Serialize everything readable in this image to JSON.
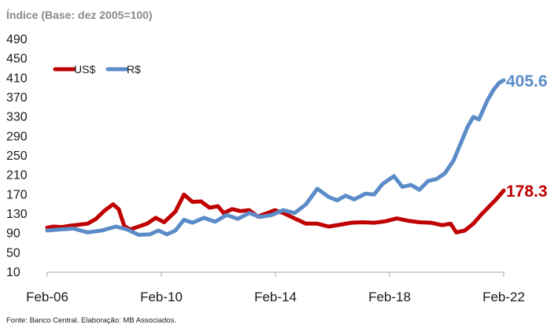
{
  "chart_data": {
    "type": "line",
    "subtitle": "Índice (Base: dez 2005=100)",
    "ylim": [
      10,
      490
    ],
    "yticks": [
      10,
      50,
      90,
      130,
      170,
      210,
      250,
      290,
      330,
      370,
      410,
      450,
      490
    ],
    "xticks": [
      "Feb-06",
      "Feb-10",
      "Feb-14",
      "Feb-18",
      "Feb-22"
    ],
    "xlim": [
      2006.08,
      2022.17
    ],
    "legend_position": "top-left",
    "grid": false,
    "series": [
      {
        "name": "US$",
        "color": "#c00000",
        "end_label": "178.3",
        "x": [
          2006.08,
          2006.3,
          2006.6,
          2006.9,
          2007.2,
          2007.5,
          2007.8,
          2008.1,
          2008.4,
          2008.6,
          2008.8,
          2009.0,
          2009.3,
          2009.6,
          2009.9,
          2010.2,
          2010.6,
          2010.9,
          2011.2,
          2011.5,
          2011.8,
          2012.1,
          2012.3,
          2012.6,
          2012.9,
          2013.2,
          2013.5,
          2013.8,
          2014.1,
          2014.4,
          2014.8,
          2015.2,
          2015.6,
          2016.0,
          2016.4,
          2016.8,
          2017.2,
          2017.6,
          2018.0,
          2018.4,
          2018.8,
          2019.2,
          2019.6,
          2020.0,
          2020.3,
          2020.5,
          2020.8,
          2021.1,
          2021.4,
          2021.7,
          2021.9,
          2022.17
        ],
        "values": [
          102,
          104,
          103,
          106,
          108,
          110,
          120,
          137,
          150,
          140,
          105,
          98,
          104,
          110,
          122,
          113,
          135,
          170,
          155,
          156,
          143,
          146,
          132,
          140,
          136,
          138,
          125,
          131,
          138,
          132,
          121,
          110,
          110,
          104,
          108,
          112,
          113,
          112,
          115,
          121,
          116,
          113,
          112,
          107,
          110,
          92,
          96,
          110,
          130,
          148,
          160,
          178.3
        ]
      },
      {
        "name": "R$",
        "color": "#5b8cc8",
        "end_label": "405.6",
        "x": [
          2006.08,
          2006.5,
          2007.0,
          2007.5,
          2008.0,
          2008.5,
          2008.9,
          2009.3,
          2009.7,
          2010.0,
          2010.3,
          2010.6,
          2010.9,
          2011.2,
          2011.6,
          2012.0,
          2012.4,
          2012.8,
          2013.2,
          2013.6,
          2014.0,
          2014.4,
          2014.8,
          2015.2,
          2015.6,
          2016.0,
          2016.3,
          2016.6,
          2016.9,
          2017.3,
          2017.6,
          2017.9,
          2018.3,
          2018.6,
          2018.9,
          2019.2,
          2019.5,
          2019.8,
          2020.1,
          2020.4,
          2020.6,
          2020.9,
          2021.1,
          2021.3,
          2021.6,
          2021.8,
          2022.0,
          2022.17
        ],
        "values": [
          96,
          98,
          100,
          92,
          96,
          104,
          98,
          87,
          88,
          96,
          88,
          96,
          118,
          112,
          122,
          114,
          128,
          120,
          132,
          124,
          128,
          138,
          132,
          150,
          182,
          165,
          158,
          168,
          160,
          172,
          170,
          192,
          208,
          186,
          190,
          180,
          198,
          202,
          214,
          240,
          268,
          310,
          330,
          325,
          365,
          385,
          400,
          405.6
        ]
      }
    ]
  },
  "source": "Fonte: Banco Central. Elaboração: MB Associados."
}
